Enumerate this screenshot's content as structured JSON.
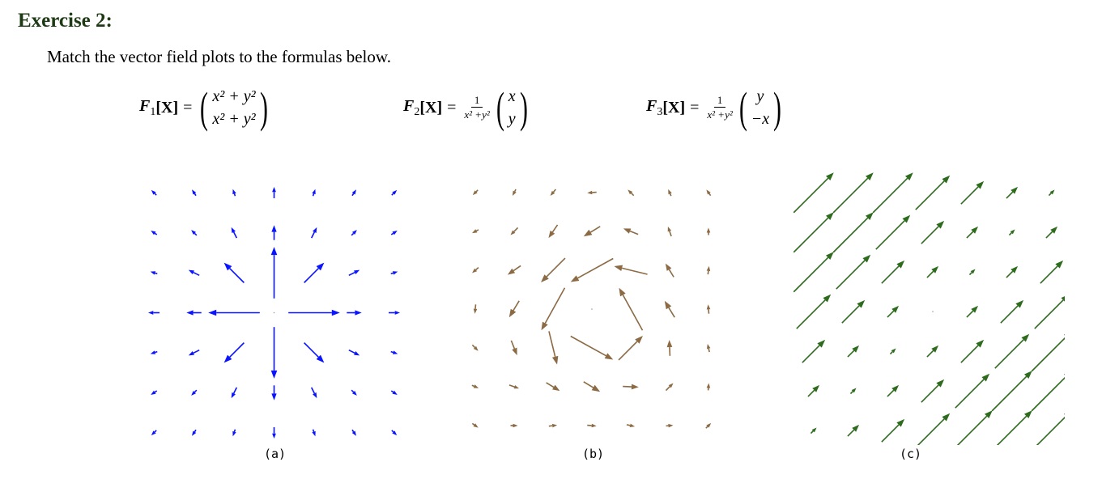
{
  "title": "Exercise 2:",
  "instruction": "Match the vector field plots to the formulas below.",
  "formulas": [
    {
      "name": "F",
      "sub": "1",
      "arg": "[X]",
      "eq": "=",
      "frac_num": "",
      "frac_den": "",
      "top": "x² + y²",
      "bottom": "x² + y²"
    },
    {
      "name": "F",
      "sub": "2",
      "arg": "[X]",
      "eq": "=",
      "frac_num": "1",
      "frac_den": "x² +y²",
      "top": "x",
      "bottom": "y"
    },
    {
      "name": "F",
      "sub": "3",
      "arg": "[X]",
      "eq": "=",
      "frac_num": "1",
      "frac_den": "x² +y²",
      "top": "y",
      "bottom": "−x"
    }
  ],
  "panels": [
    {
      "label": "(a)",
      "color": "#0a14ff",
      "field": "radial-sqrt"
    },
    {
      "label": "(b)",
      "color": "#8b6a44",
      "field": "rotational-twist"
    },
    {
      "label": "(c)",
      "color": "#2d6b1d",
      "field": "diagonal-constant"
    }
  ]
}
